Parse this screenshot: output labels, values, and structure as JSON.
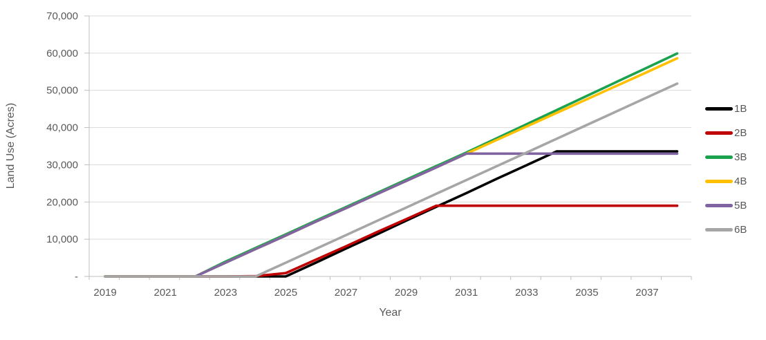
{
  "chart_data": {
    "type": "line",
    "title": "",
    "xlabel": "Year",
    "ylabel": "Land Use (Acres)",
    "legend_position": "right",
    "grid": "horizontal",
    "ylim": [
      0,
      70000
    ],
    "x": [
      2019,
      2020,
      2021,
      2022,
      2023,
      2024,
      2025,
      2026,
      2027,
      2028,
      2029,
      2030,
      2031,
      2032,
      2033,
      2034,
      2035,
      2036,
      2037,
      2038
    ],
    "x_tick_labels": [
      "2019",
      "2021",
      "2023",
      "2025",
      "2027",
      "2029",
      "2031",
      "2033",
      "2035",
      "2037"
    ],
    "y_ticks": [
      {
        "label": "-",
        "value": 0
      },
      {
        "label": "10,000",
        "value": 10000
      },
      {
        "label": "20,000",
        "value": 20000
      },
      {
        "label": "30,000",
        "value": 30000
      },
      {
        "label": "40,000",
        "value": 40000
      },
      {
        "label": "50,000",
        "value": 50000
      },
      {
        "label": "60,000",
        "value": 60000
      },
      {
        "label": "70,000",
        "value": 70000
      }
    ],
    "colors": {
      "text": "#595959",
      "grid": "#D9D9D9",
      "axis": "#BFBFBF"
    },
    "series": [
      {
        "name": "1B",
        "color": "#000000",
        "values": [
          0,
          0,
          0,
          0,
          0,
          0,
          0,
          3700,
          7500,
          11200,
          15000,
          18700,
          22400,
          26200,
          29900,
          33600,
          33600,
          33600,
          33600,
          33600
        ]
      },
      {
        "name": "2B",
        "color": "#C00000",
        "values": [
          0,
          0,
          0,
          0,
          0,
          100,
          900,
          4500,
          8100,
          11800,
          15400,
          19000,
          19000,
          19000,
          19000,
          19000,
          19000,
          19000,
          19000,
          19000
        ]
      },
      {
        "name": "3B",
        "color": "#1AA24F",
        "values": [
          0,
          0,
          0,
          0,
          4000,
          7650,
          11300,
          15000,
          18650,
          22300,
          26000,
          29650,
          33300,
          37100,
          40900,
          44700,
          48500,
          52300,
          56100,
          59900
        ]
      },
      {
        "name": "4B",
        "color": "#FFC000",
        "values": [
          0,
          0,
          0,
          0,
          3700,
          7350,
          11000,
          14700,
          18350,
          22000,
          25650,
          29300,
          33000,
          36650,
          40300,
          43950,
          47600,
          51250,
          54900,
          58600
        ]
      },
      {
        "name": "5B",
        "color": "#8064A2",
        "values": [
          0,
          0,
          0,
          0,
          3700,
          7350,
          11000,
          14700,
          18350,
          22000,
          25650,
          29300,
          33000,
          33000,
          33000,
          33000,
          33000,
          33000,
          33000,
          33000
        ]
      },
      {
        "name": "6B",
        "color": "#A6A6A6",
        "values": [
          0,
          0,
          0,
          0,
          0,
          0,
          3700,
          7400,
          11100,
          14800,
          18500,
          22200,
          25900,
          29600,
          33300,
          37000,
          40700,
          44400,
          48100,
          51800
        ]
      }
    ]
  }
}
